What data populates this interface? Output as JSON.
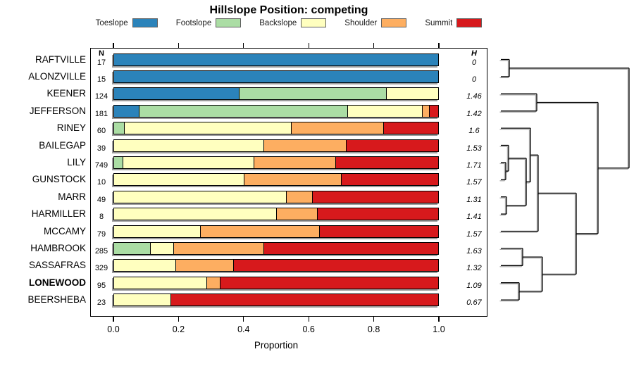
{
  "title": "Hillslope Position: competing",
  "legend": {
    "items": [
      {
        "label": "Toeslope",
        "color": "#2B83BA"
      },
      {
        "label": "Footslope",
        "color": "#ABDDA4"
      },
      {
        "label": "Backslope",
        "color": "#FFFFBF"
      },
      {
        "label": "Shoulder",
        "color": "#FDAE61"
      },
      {
        "label": "Summit",
        "color": "#D7191C"
      }
    ]
  },
  "columns": {
    "n_header": "N",
    "h_header": "H"
  },
  "chart_data": {
    "type": "bar",
    "stacked": true,
    "horizontal": true,
    "title": "Hillslope Position: competing",
    "xlabel": "Proportion",
    "xlim": [
      0,
      1
    ],
    "xticks": [
      0.0,
      0.2,
      0.4,
      0.6,
      0.8,
      1.0
    ],
    "xtick_labels": [
      "0.0",
      "0.2",
      "0.4",
      "0.6",
      "0.8",
      "1.0"
    ],
    "grid": false,
    "legend_position": "top",
    "position_classes": [
      "Toeslope",
      "Footslope",
      "Backslope",
      "Shoulder",
      "Summit"
    ],
    "colors": {
      "Toeslope": "#2B83BA",
      "Footslope": "#ABDDA4",
      "Backslope": "#FFFFBF",
      "Shoulder": "#FDAE61",
      "Summit": "#D7191C"
    },
    "rows": [
      {
        "site": "RAFTVILLE",
        "n": 17,
        "h": "0",
        "bold": false,
        "segments": [
          [
            "Toeslope",
            1.0
          ]
        ]
      },
      {
        "site": "ALONZVILLE",
        "n": 15,
        "h": "0",
        "bold": false,
        "segments": [
          [
            "Toeslope",
            1.0
          ]
        ]
      },
      {
        "site": "KEENER",
        "n": 124,
        "h": "1.46",
        "bold": false,
        "segments": [
          [
            "Toeslope",
            0.385
          ],
          [
            "Footslope",
            0.455
          ],
          [
            "Backslope",
            0.16
          ]
        ]
      },
      {
        "site": "JEFFERSON",
        "n": 181,
        "h": "1.42",
        "bold": false,
        "segments": [
          [
            "Toeslope",
            0.075
          ],
          [
            "Footslope",
            0.645
          ],
          [
            "Backslope",
            0.229
          ],
          [
            "Shoulder",
            0.023
          ],
          [
            "Summit",
            0.028
          ]
        ]
      },
      {
        "site": "RINEY",
        "n": 60,
        "h": "1.6",
        "bold": false,
        "segments": [
          [
            "Footslope",
            0.03
          ],
          [
            "Backslope",
            0.515
          ],
          [
            "Shoulder",
            0.285
          ],
          [
            "Summit",
            0.17
          ]
        ]
      },
      {
        "site": "BAILEGAP",
        "n": 39,
        "h": "1.53",
        "bold": false,
        "segments": [
          [
            "Backslope",
            0.46
          ],
          [
            "Shoulder",
            0.255
          ],
          [
            "Summit",
            0.285
          ]
        ]
      },
      {
        "site": "LILY",
        "n": 749,
        "h": "1.71",
        "bold": false,
        "segments": [
          [
            "Footslope",
            0.027
          ],
          [
            "Backslope",
            0.403
          ],
          [
            "Shoulder",
            0.253
          ],
          [
            "Summit",
            0.317
          ]
        ]
      },
      {
        "site": "GUNSTOCK",
        "n": 10,
        "h": "1.57",
        "bold": false,
        "segments": [
          [
            "Backslope",
            0.4
          ],
          [
            "Shoulder",
            0.3
          ],
          [
            "Summit",
            0.3
          ]
        ]
      },
      {
        "site": "MARR",
        "n": 49,
        "h": "1.31",
        "bold": false,
        "segments": [
          [
            "Backslope",
            0.53
          ],
          [
            "Shoulder",
            0.08
          ],
          [
            "Summit",
            0.39
          ]
        ]
      },
      {
        "site": "HARMILLER",
        "n": 8,
        "h": "1.41",
        "bold": false,
        "segments": [
          [
            "Backslope",
            0.5
          ],
          [
            "Shoulder",
            0.125
          ],
          [
            "Summit",
            0.375
          ]
        ]
      },
      {
        "site": "MCCAMY",
        "n": 79,
        "h": "1.57",
        "bold": false,
        "segments": [
          [
            "Backslope",
            0.265
          ],
          [
            "Shoulder",
            0.367
          ],
          [
            "Summit",
            0.368
          ]
        ]
      },
      {
        "site": "HAMBROOK",
        "n": 285,
        "h": "1.63",
        "bold": false,
        "segments": [
          [
            "Footslope",
            0.11
          ],
          [
            "Backslope",
            0.072
          ],
          [
            "Shoulder",
            0.278
          ],
          [
            "Summit",
            0.54
          ]
        ]
      },
      {
        "site": "SASSAFRAS",
        "n": 329,
        "h": "1.32",
        "bold": false,
        "segments": [
          [
            "Backslope",
            0.19
          ],
          [
            "Shoulder",
            0.178
          ],
          [
            "Summit",
            0.632
          ]
        ]
      },
      {
        "site": "LONEWOOD",
        "n": 95,
        "h": "1.09",
        "bold": true,
        "segments": [
          [
            "Backslope",
            0.284
          ],
          [
            "Shoulder",
            0.042
          ],
          [
            "Summit",
            0.674
          ]
        ]
      },
      {
        "site": "BEERSHEBA",
        "n": 23,
        "h": "0.67",
        "bold": false,
        "segments": [
          [
            "Backslope",
            0.174
          ],
          [
            "Summit",
            0.826
          ]
        ]
      }
    ],
    "dendrogram": {
      "leaf_order": [
        "RAFTVILLE",
        "ALONZVILLE",
        "KEENER",
        "JEFFERSON",
        "RINEY",
        "BAILEGAP",
        "LILY",
        "GUNSTOCK",
        "MARR",
        "HARMILLER",
        "MCCAMY",
        "HAMBROOK",
        "SASSAFRAS",
        "LONEWOOD",
        "BEERSHEBA"
      ],
      "merges": [
        {
          "id": "M0",
          "a": "L0",
          "b": "L1",
          "h": 0.066
        },
        {
          "id": "M1",
          "a": "L2",
          "b": "L3",
          "h": 0.28
        },
        {
          "id": "M2",
          "a": "L6",
          "b": "L7",
          "h": 0.038
        },
        {
          "id": "M3",
          "a": "L5",
          "b": "M2",
          "h": 0.06
        },
        {
          "id": "M4",
          "a": "L8",
          "b": "L9",
          "h": 0.044
        },
        {
          "id": "M5",
          "a": "M3",
          "b": "M4",
          "h": 0.198
        },
        {
          "id": "M6",
          "a": "L4",
          "b": "M5",
          "h": 0.231
        },
        {
          "id": "M7",
          "a": "M6",
          "b": "L10",
          "h": 0.291
        },
        {
          "id": "M8",
          "a": "L11",
          "b": "L12",
          "h": 0.17
        },
        {
          "id": "M9",
          "a": "L13",
          "b": "L14",
          "h": 0.143
        },
        {
          "id": "M10",
          "a": "M8",
          "b": "M9",
          "h": 0.324
        },
        {
          "id": "M11",
          "a": "M7",
          "b": "M10",
          "h": 0.588
        },
        {
          "id": "M12",
          "a": "M1",
          "b": "M11",
          "h": 0.758
        },
        {
          "id": "M13",
          "a": "M0",
          "b": "M12",
          "h": 1.0
        }
      ]
    }
  }
}
